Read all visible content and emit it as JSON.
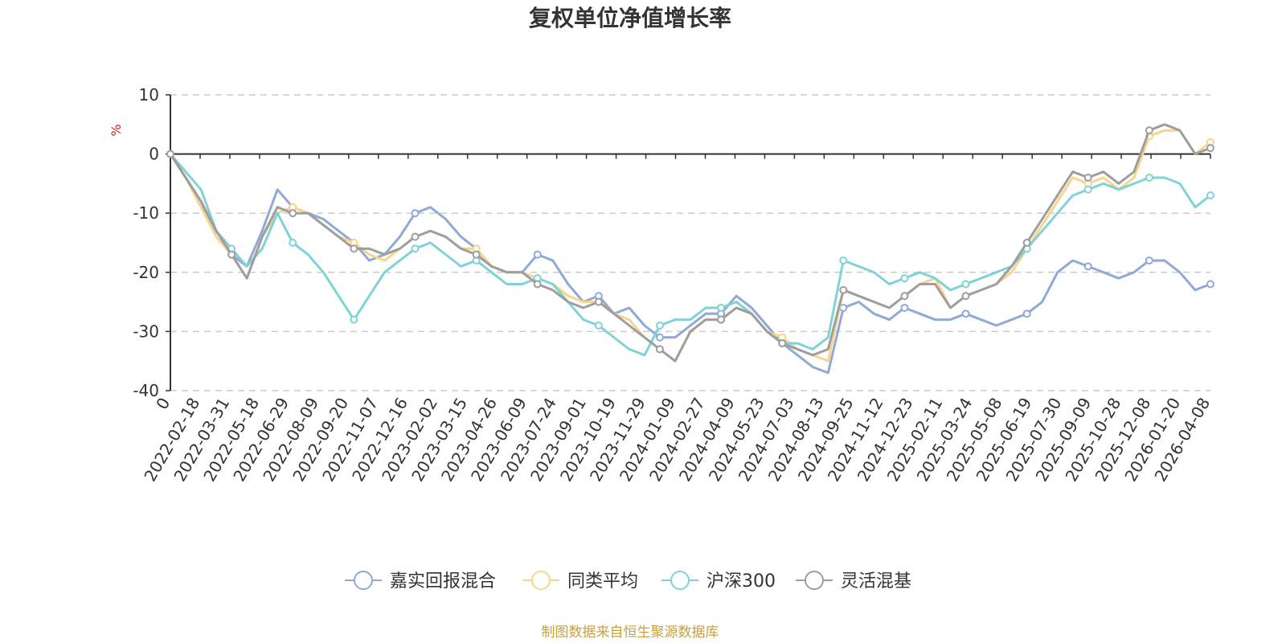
{
  "chart_data": {
    "type": "line",
    "title": "复权单位净值增长率",
    "ylabel": "%",
    "ylim": [
      -40,
      10
    ],
    "yticks": [
      10,
      0,
      -10,
      -20,
      -30,
      -40
    ],
    "grid": true,
    "legend_position": "bottom",
    "x_tick_labels": [
      "0",
      "2022-02-18",
      "2022-03-31",
      "2022-05-18",
      "2022-06-29",
      "2022-08-09",
      "2022-09-20",
      "2022-11-07",
      "2022-12-16",
      "2023-02-02",
      "2023-03-15",
      "2023-04-26",
      "2023-06-09",
      "2023-07-24",
      "2023-09-01",
      "2023-10-19",
      "2023-11-29",
      "2024-01-09",
      "2024-02-27",
      "2024-04-09",
      "2024-05-23",
      "2024-07-03",
      "2024-08-13",
      "2024-09-25",
      "2024-11-12",
      "2024-12-23",
      "2025-02-11",
      "2025-03-24",
      "2025-05-08",
      "2025-06-19",
      "2025-07-30",
      "2025-09-09",
      "2025-10-28",
      "2025-12-08",
      "2026-01-20",
      "2026-04-08"
    ],
    "series": [
      {
        "name": "嘉实回报混合",
        "color": "#8fa9d8",
        "values": [
          0,
          -4,
          -8,
          -14,
          -17,
          -19,
          -13,
          -6,
          -9,
          -10,
          -11,
          -13,
          -15,
          -18,
          -17,
          -14,
          -10,
          -9,
          -11,
          -14,
          -16,
          -19,
          -20,
          -20,
          -17,
          -18,
          -22,
          -25,
          -24,
          -27,
          -26,
          -29,
          -31,
          -31,
          -29,
          -27,
          -27,
          -24,
          -26,
          -29,
          -32,
          -34,
          -36,
          -37,
          -26,
          -25,
          -27,
          -28,
          -26,
          -27,
          -28,
          -28,
          -27,
          -28,
          -29,
          -28,
          -27,
          -25,
          -20,
          -18,
          -19,
          -20,
          -21,
          -20,
          -18,
          -18,
          -20,
          -23,
          -22
        ]
      },
      {
        "name": "同类平均",
        "color": "#f9d48c",
        "values": [
          0,
          -4,
          -9,
          -14,
          -17,
          -21,
          -14,
          -10,
          -9,
          -10,
          -12,
          -14,
          -15,
          -17,
          -18,
          -16,
          -14,
          -13,
          -14,
          -16,
          -16,
          -19,
          -20,
          -20,
          -21,
          -22,
          -24,
          -25,
          -25,
          -27,
          -28,
          -31,
          -33,
          -35,
          -30,
          -28,
          -28,
          -26,
          -27,
          -30,
          -31,
          -33,
          -34,
          -35,
          -23,
          -24,
          -25,
          -26,
          -24,
          -22,
          -21,
          -26,
          -24,
          -23,
          -22,
          -20,
          -16,
          -12,
          -8,
          -4,
          -5,
          -4,
          -6,
          -4,
          3,
          4,
          4,
          0,
          2
        ]
      },
      {
        "name": "沪深300",
        "color": "#7fd3d7",
        "values": [
          0,
          -3,
          -6,
          -13,
          -16,
          -19,
          -16,
          -10,
          -15,
          -17,
          -20,
          -24,
          -28,
          -24,
          -20,
          -18,
          -16,
          -15,
          -17,
          -19,
          -18,
          -20,
          -22,
          -22,
          -21,
          -22,
          -25,
          -28,
          -29,
          -31,
          -33,
          -34,
          -29,
          -28,
          -28,
          -26,
          -26,
          -25,
          -27,
          -30,
          -32,
          -32,
          -33,
          -31,
          -18,
          -19,
          -20,
          -22,
          -21,
          -20,
          -21,
          -23,
          -22,
          -21,
          -20,
          -19,
          -16,
          -13,
          -10,
          -7,
          -6,
          -5,
          -6,
          -5,
          -4,
          -4,
          -5,
          -9,
          -7
        ]
      },
      {
        "name": "灵活混基",
        "color": "#9e9e9e",
        "values": [
          0,
          -4,
          -8,
          -13,
          -17,
          -21,
          -14,
          -9,
          -10,
          -10,
          -12,
          -14,
          -16,
          -16,
          -17,
          -16,
          -14,
          -13,
          -14,
          -16,
          -17,
          -19,
          -20,
          -20,
          -22,
          -23,
          -25,
          -26,
          -25,
          -27,
          -29,
          -31,
          -33,
          -35,
          -30,
          -28,
          -28,
          -26,
          -27,
          -30,
          -32,
          -33,
          -34,
          -33,
          -23,
          -24,
          -25,
          -26,
          -24,
          -22,
          -22,
          -26,
          -24,
          -23,
          -22,
          -19,
          -15,
          -11,
          -7,
          -3,
          -4,
          -3,
          -5,
          -3,
          4,
          5,
          4,
          0,
          1
        ]
      }
    ]
  },
  "source_text": "制图数据来自恒生聚源数据库"
}
